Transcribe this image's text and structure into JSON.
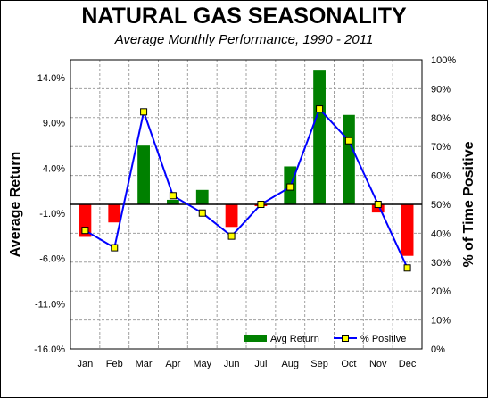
{
  "chart_data": {
    "type": "bar",
    "title": "NATURAL GAS SEASONALITY",
    "subtitle": "Average Monthly Performance, 1990 - 2011",
    "categories": [
      "Jan",
      "Feb",
      "Mar",
      "Apr",
      "May",
      "Jun",
      "Jul",
      "Aug",
      "Sep",
      "Oct",
      "Nov",
      "Dec"
    ],
    "series": [
      {
        "name": "Avg Return",
        "type": "bar",
        "axis": "left",
        "values": [
          -3.6,
          -2.0,
          6.5,
          0.5,
          1.6,
          -2.5,
          -0.2,
          4.2,
          14.8,
          9.9,
          -0.9,
          -5.7
        ]
      },
      {
        "name": "% Positive",
        "type": "line",
        "axis": "right",
        "values": [
          41,
          35,
          82,
          53,
          47,
          39,
          50,
          56,
          83,
          72,
          50,
          28
        ]
      }
    ],
    "ylabel": "Average Return",
    "y2label": "% of Time Positive",
    "ylim": [
      -16,
      16
    ],
    "y2lim": [
      0,
      100
    ],
    "y_ticks": [
      "14.0%",
      "9.0%",
      "4.0%",
      "-1.0%",
      "-6.0%",
      "-11.0%",
      "-16.0%"
    ],
    "y2_ticks": [
      "100%",
      "90%",
      "80%",
      "70%",
      "60%",
      "50%",
      "40%",
      "30%",
      "20%",
      "10%",
      "0%"
    ],
    "grid": true,
    "legend": "bottom-right",
    "colors": {
      "positive_bar": "#008000",
      "negative_bar": "#ff0000",
      "line": "#0000ff",
      "marker_fill": "#ffff00",
      "marker_edge": "#000000",
      "plot_bg": "#ffffff",
      "grid": "#a0a0a0"
    }
  }
}
